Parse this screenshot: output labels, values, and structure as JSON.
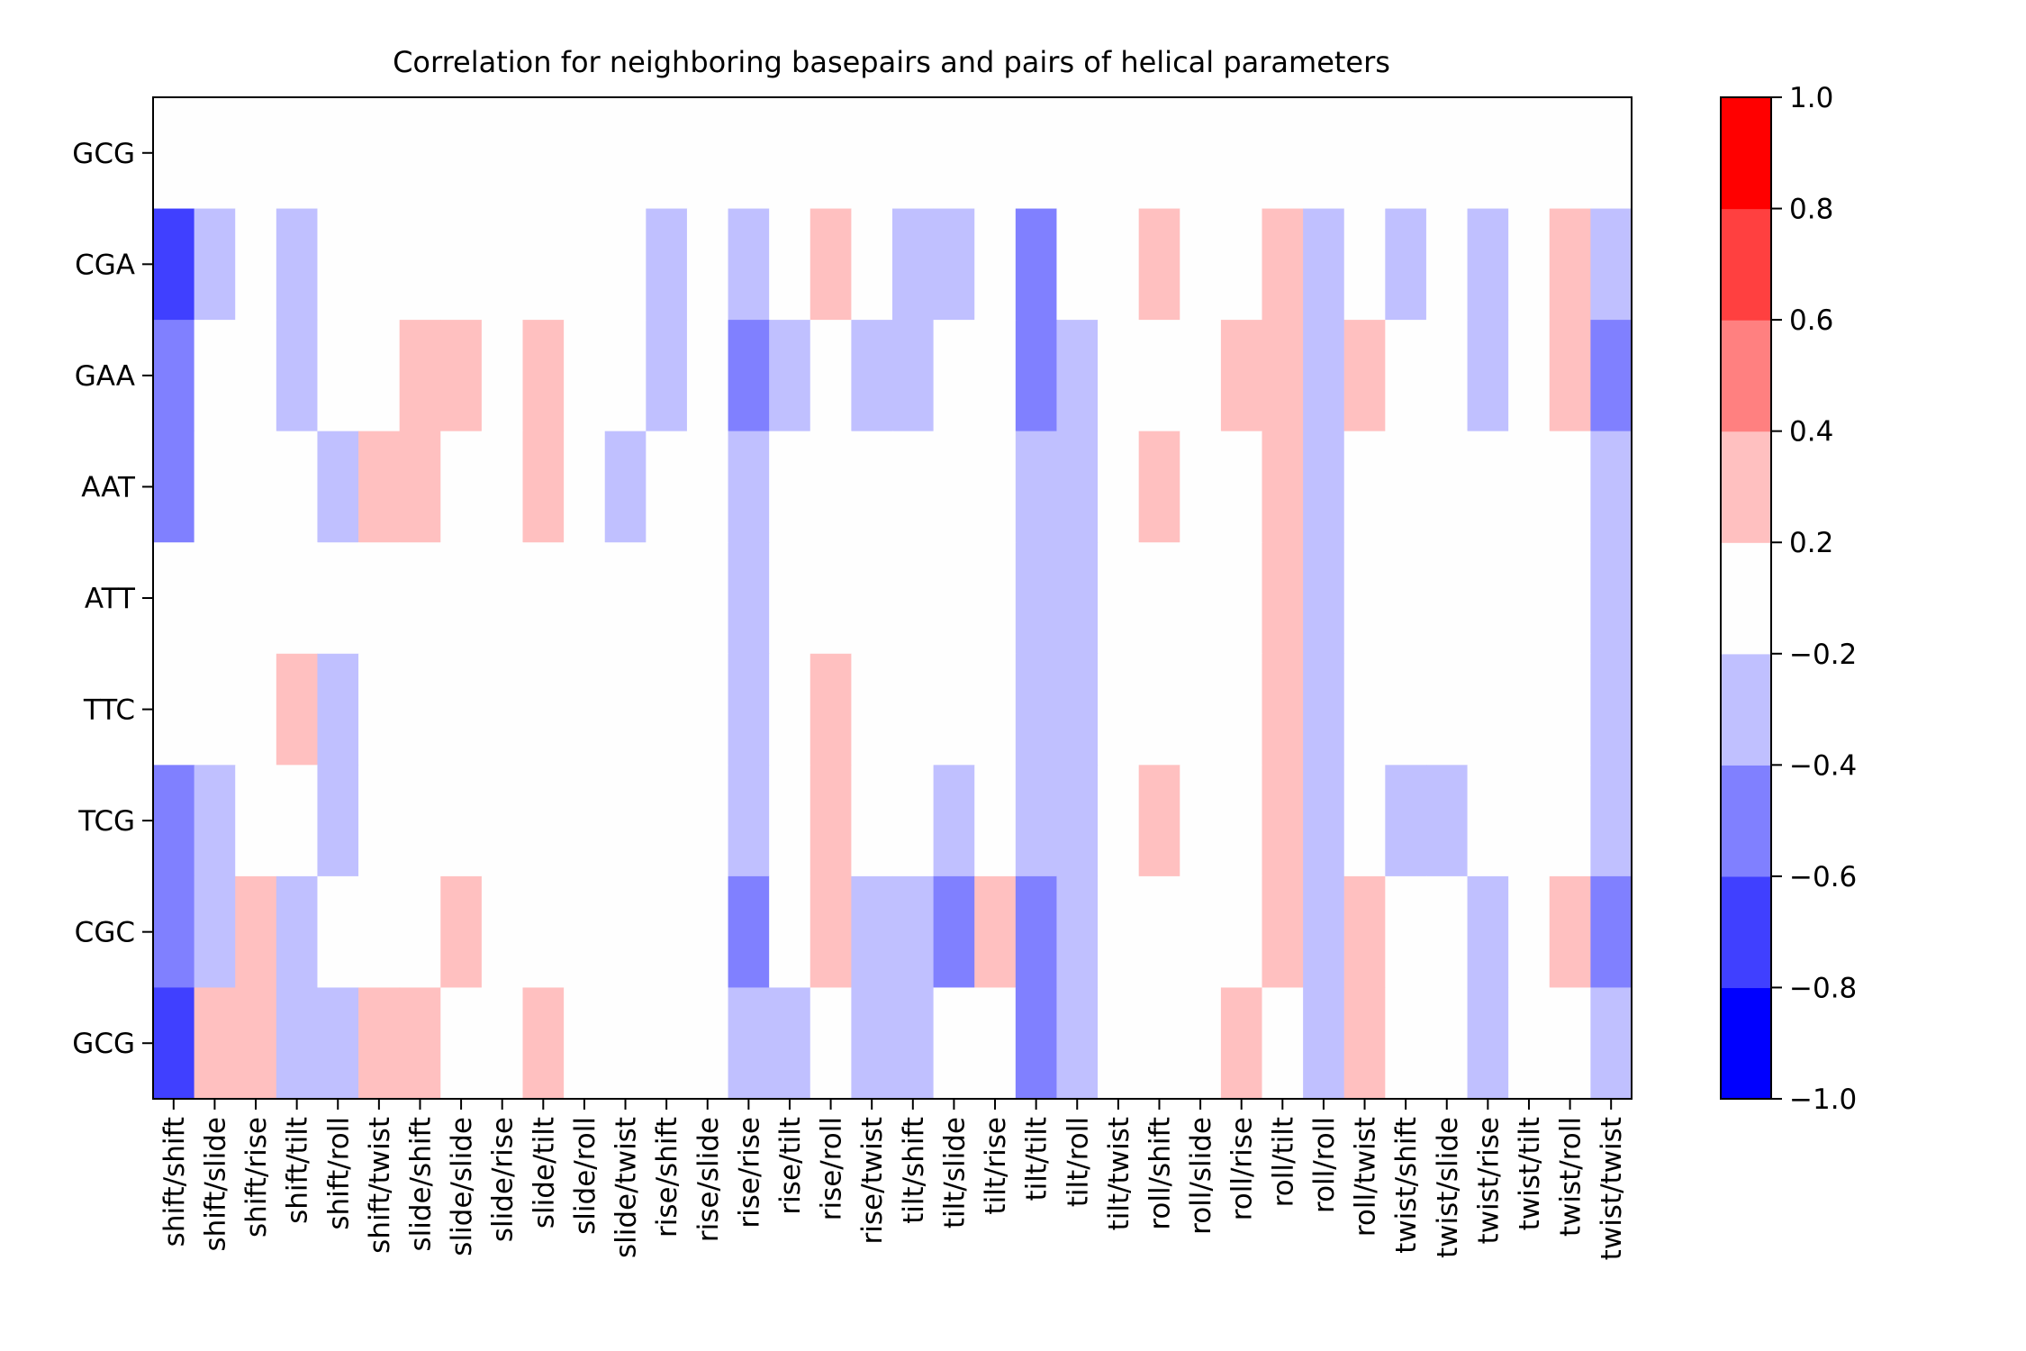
{
  "chart_data": {
    "type": "heatmap",
    "title": "Correlation for neighboring basepairs and pairs of helical parameters",
    "xlabel": "",
    "ylabel": "",
    "rows": [
      "GCG",
      "CGA",
      "GAA",
      "AAT",
      "ATT",
      "TTC",
      "TCG",
      "CGC",
      "GCG"
    ],
    "columns": [
      "shift/shift",
      "shift/slide",
      "shift/rise",
      "shift/tilt",
      "shift/roll",
      "shift/twist",
      "slide/shift",
      "slide/slide",
      "slide/rise",
      "slide/tilt",
      "slide/roll",
      "slide/twist",
      "rise/shift",
      "rise/slide",
      "rise/rise",
      "rise/tilt",
      "rise/roll",
      "rise/twist",
      "tilt/shift",
      "tilt/slide",
      "tilt/rise",
      "tilt/tilt",
      "tilt/roll",
      "tilt/twist",
      "roll/shift",
      "roll/slide",
      "roll/rise",
      "roll/tilt",
      "roll/roll",
      "roll/twist",
      "twist/shift",
      "twist/slide",
      "twist/rise",
      "twist/tilt",
      "twist/roll",
      "twist/twist"
    ],
    "values": [
      [
        0,
        0,
        0,
        0,
        0,
        0,
        0,
        0,
        0,
        0,
        0,
        0,
        0,
        0,
        0,
        0,
        0,
        0,
        0,
        0,
        0,
        0,
        0,
        0,
        0,
        0,
        0,
        0,
        0,
        0,
        0,
        0,
        0,
        0,
        0,
        0
      ],
      [
        -0.7,
        -0.3,
        0,
        -0.3,
        0,
        0,
        0,
        0,
        0,
        0,
        0,
        0,
        -0.3,
        0,
        -0.3,
        0,
        0.3,
        0,
        -0.3,
        -0.3,
        0,
        -0.5,
        0,
        0,
        0.3,
        0,
        0,
        0.3,
        -0.3,
        0,
        -0.3,
        0,
        -0.3,
        0,
        0.3,
        -0.3
      ],
      [
        -0.5,
        0,
        0,
        -0.3,
        0,
        0,
        0.3,
        0.3,
        0,
        0.3,
        0,
        0,
        -0.3,
        0,
        -0.5,
        -0.3,
        0,
        -0.3,
        -0.3,
        0,
        0,
        -0.5,
        -0.3,
        0,
        0,
        0,
        0.3,
        0.3,
        -0.3,
        0.3,
        0,
        0,
        -0.3,
        0,
        0.3,
        -0.5
      ],
      [
        -0.5,
        0,
        0,
        0,
        -0.3,
        0.3,
        0.3,
        0,
        0,
        0.3,
        0,
        -0.3,
        0,
        0,
        -0.3,
        0,
        0,
        0,
        0,
        0,
        0,
        -0.3,
        -0.3,
        0,
        0.3,
        0,
        0,
        0.3,
        -0.3,
        0,
        0,
        0,
        0,
        0,
        0,
        -0.3
      ],
      [
        0,
        0,
        0,
        0,
        0,
        0,
        0,
        0,
        0,
        0,
        0,
        0,
        0,
        0,
        -0.3,
        0,
        0,
        0,
        0,
        0,
        0,
        -0.3,
        -0.3,
        0,
        0,
        0,
        0,
        0.3,
        -0.3,
        0,
        0,
        0,
        0,
        0,
        0,
        -0.3
      ],
      [
        0,
        0,
        0,
        0.3,
        -0.3,
        0,
        0,
        0,
        0,
        0,
        0,
        0,
        0,
        0,
        -0.3,
        0,
        0.3,
        0,
        0,
        0,
        0,
        -0.3,
        -0.3,
        0,
        0,
        0,
        0,
        0.3,
        -0.3,
        0,
        0,
        0,
        0,
        0,
        0,
        -0.3
      ],
      [
        -0.5,
        -0.3,
        0,
        0,
        -0.3,
        0,
        0,
        0,
        0,
        0,
        0,
        0,
        0,
        0,
        -0.3,
        0,
        0.3,
        0,
        0,
        -0.3,
        0,
        -0.3,
        -0.3,
        0,
        0.3,
        0,
        0,
        0.3,
        -0.3,
        0,
        -0.3,
        -0.3,
        0,
        0,
        0,
        -0.3
      ],
      [
        -0.5,
        -0.3,
        0.3,
        -0.3,
        0,
        0,
        0,
        0.3,
        0,
        0,
        0,
        0,
        0,
        0,
        -0.5,
        0,
        0.3,
        -0.3,
        -0.3,
        -0.5,
        0.3,
        -0.5,
        -0.3,
        0,
        0,
        0,
        0,
        0.3,
        -0.3,
        0.3,
        0,
        0,
        -0.3,
        0,
        0.3,
        -0.5
      ],
      [
        -0.7,
        0.3,
        0.3,
        -0.3,
        -0.3,
        0.3,
        0.3,
        0,
        0,
        0.3,
        0,
        0,
        0,
        0,
        -0.3,
        -0.3,
        0,
        -0.3,
        -0.3,
        0,
        0,
        -0.5,
        -0.3,
        0,
        0,
        0,
        0.3,
        0,
        -0.3,
        0.3,
        0,
        0,
        -0.3,
        0,
        0,
        -0.3
      ]
    ],
    "colorbar": {
      "range": [
        -1.0,
        1.0
      ],
      "ticks": [
        "1.0",
        "0.8",
        "0.6",
        "0.4",
        "0.2",
        "−0.2",
        "−0.4",
        "−0.6",
        "−0.8",
        "−1.0"
      ],
      "bin_colors": [
        "#0000ff",
        "#4040ff",
        "#8080ff",
        "#c0c0ff",
        "#fefefe",
        "#ffc0c0",
        "#ff8080",
        "#ff4040",
        "#ff0000"
      ]
    }
  }
}
